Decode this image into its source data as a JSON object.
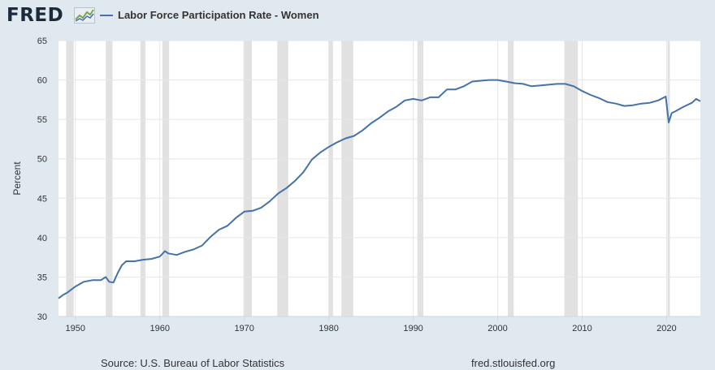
{
  "header": {
    "logo_text": "FRED",
    "logo_icon": "line-chart-icon",
    "legend_label": "Labor Force Participation Rate - Women"
  },
  "footer": {
    "source": "Source: U.S. Bureau of Labor Statistics",
    "site": "fred.stlouisfed.org"
  },
  "colors": {
    "background": "#e1e9f0",
    "plot_background": "#ffffff",
    "series": "#4572a7",
    "recession": "#e1e1e1",
    "grid": "#e6e6e6"
  },
  "chart_data": {
    "type": "line",
    "title": "",
    "xlabel": "",
    "ylabel": "Percent",
    "xlim": [
      1948.0,
      2024.0
    ],
    "ylim": [
      30,
      65
    ],
    "yticks": [
      30,
      35,
      40,
      45,
      50,
      55,
      60,
      65
    ],
    "xticks": [
      1950,
      1960,
      1970,
      1980,
      1990,
      2000,
      2010,
      2020
    ],
    "grid": true,
    "legend_position": "top-left",
    "recessions": [
      [
        1948.9,
        1949.8
      ],
      [
        1953.6,
        1954.4
      ],
      [
        1957.7,
        1958.3
      ],
      [
        1960.3,
        1961.1
      ],
      [
        1969.9,
        1970.9
      ],
      [
        1973.9,
        1975.2
      ],
      [
        1980.0,
        1980.5
      ],
      [
        1981.5,
        1982.9
      ],
      [
        1990.5,
        1991.2
      ],
      [
        2001.2,
        2001.9
      ],
      [
        2007.9,
        2009.5
      ],
      [
        2020.1,
        2020.3
      ]
    ],
    "series": [
      {
        "name": "Labor Force Participation Rate - Women",
        "x": [
          1948.0,
          1948.5,
          1949.0,
          1950.0,
          1951.0,
          1952.0,
          1953.0,
          1953.6,
          1954.0,
          1954.5,
          1955.0,
          1955.5,
          1956.0,
          1957.0,
          1958.0,
          1959.0,
          1960.0,
          1960.6,
          1961.0,
          1962.0,
          1963.0,
          1964.0,
          1965.0,
          1966.0,
          1967.0,
          1968.0,
          1969.0,
          1970.0,
          1971.0,
          1972.0,
          1973.0,
          1974.0,
          1975.0,
          1976.0,
          1977.0,
          1978.0,
          1979.0,
          1980.0,
          1981.0,
          1982.0,
          1983.0,
          1984.0,
          1985.0,
          1986.0,
          1987.0,
          1988.0,
          1989.0,
          1990.0,
          1991.0,
          1992.0,
          1993.0,
          1994.0,
          1995.0,
          1996.0,
          1997.0,
          1998.0,
          1999.0,
          2000.0,
          2001.0,
          2002.0,
          2003.0,
          2004.0,
          2005.0,
          2006.0,
          2007.0,
          2008.0,
          2009.0,
          2010.0,
          2011.0,
          2012.0,
          2013.0,
          2014.0,
          2015.0,
          2016.0,
          2017.0,
          2018.0,
          2019.0,
          2019.9,
          2020.25,
          2020.6,
          2021.0,
          2022.0,
          2023.0,
          2023.5,
          2024.0
        ],
        "values": [
          32.3,
          32.7,
          33.0,
          33.8,
          34.4,
          34.6,
          34.6,
          35.0,
          34.4,
          34.3,
          35.5,
          36.5,
          37.0,
          37.0,
          37.2,
          37.3,
          37.6,
          38.3,
          38.0,
          37.8,
          38.2,
          38.5,
          39.0,
          40.1,
          41.0,
          41.5,
          42.5,
          43.3,
          43.4,
          43.8,
          44.6,
          45.6,
          46.3,
          47.2,
          48.3,
          49.9,
          50.8,
          51.5,
          52.1,
          52.6,
          52.9,
          53.6,
          54.5,
          55.2,
          56.0,
          56.6,
          57.4,
          57.6,
          57.4,
          57.8,
          57.8,
          58.8,
          58.8,
          59.2,
          59.8,
          59.9,
          60.0,
          60.0,
          59.8,
          59.6,
          59.5,
          59.2,
          59.3,
          59.4,
          59.5,
          59.5,
          59.2,
          58.6,
          58.1,
          57.7,
          57.2,
          57.0,
          56.7,
          56.8,
          57.0,
          57.1,
          57.4,
          57.9,
          54.6,
          55.8,
          56.0,
          56.6,
          57.1,
          57.6,
          57.3
        ]
      }
    ]
  }
}
